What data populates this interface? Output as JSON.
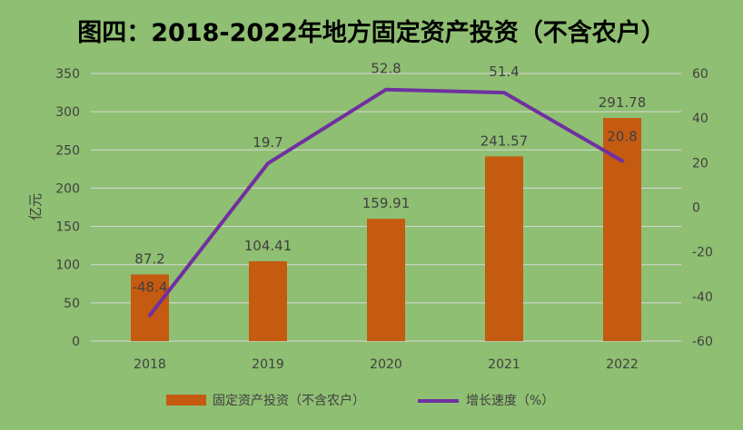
{
  "chart_data": {
    "type": "bar+line",
    "title": "图四：2018-2022年地方固定资产投资（不含农户）",
    "categories": [
      "2018",
      "2019",
      "2020",
      "2021",
      "2022"
    ],
    "ylabel": "亿元",
    "ylim": [
      0,
      350
    ],
    "y_ticks": [
      "0",
      "50",
      "100",
      "150",
      "200",
      "250",
      "300",
      "350"
    ],
    "y2lim": [
      -60,
      60
    ],
    "y2_ticks": [
      "-60",
      "-40",
      "-20",
      "0",
      "20",
      "40",
      "60"
    ],
    "grid": true,
    "legend_position": "bottom",
    "series": [
      {
        "name": "固定资产投资（不含农户）",
        "kind": "bar",
        "axis": "left",
        "color": "#c55a11",
        "values": [
          87.2,
          104.41,
          159.91,
          241.57,
          291.78
        ],
        "labels": [
          "87.2",
          "104.41",
          "159.91",
          "241.57",
          "291.78"
        ]
      },
      {
        "name": "增长速度（%）",
        "kind": "line",
        "axis": "right",
        "color": "#7030a0",
        "values": [
          -48.4,
          19.7,
          52.8,
          51.4,
          20.8
        ],
        "labels": [
          "-48.4",
          "19.7",
          "52.8",
          "51.4",
          "20.8"
        ]
      }
    ]
  },
  "colors": {
    "background": "#8fbf72",
    "gridline": "#d9d9d9",
    "axis_text": "#404040",
    "title_text": "#000000"
  }
}
